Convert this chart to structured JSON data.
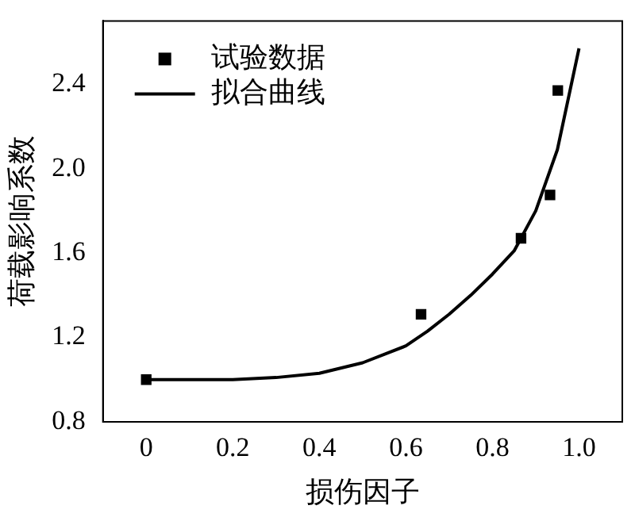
{
  "chart_data": {
    "type": "scatter",
    "xlabel": "损伤因子",
    "ylabel": "荷载影响系数",
    "xlim": [
      -0.1,
      1.1
    ],
    "xticks": [
      {
        "value": 0,
        "label": "0"
      },
      0.2,
      0.4,
      0.6,
      0.8,
      {
        "value": 1,
        "label": "1.0"
      }
    ],
    "ylim": [
      0.8,
      2.7
    ],
    "yticks": [
      0.8,
      1.2,
      1.6,
      {
        "value": 2,
        "label": "2.0"
      },
      2.4
    ],
    "grid": false,
    "legend": "top left",
    "series": [
      {
        "name": "试验数据",
        "type": "scatter",
        "marker": "square",
        "color": "#000000",
        "x": [
          0,
          0.635,
          0.866,
          0.933,
          0.951
        ],
        "values": [
          1.0,
          1.31,
          1.67,
          1.875,
          2.37
        ]
      },
      {
        "name": "拟合曲线",
        "type": "line",
        "marker": "none",
        "line_style": "solid",
        "color": "#000000",
        "x": [
          0,
          0.2,
          0.3,
          0.4,
          0.5,
          0.6,
          0.65,
          0.7,
          0.75,
          0.8,
          0.85,
          0.9,
          0.95,
          1.0
        ],
        "values": [
          1.0,
          1.0,
          1.01,
          1.03,
          1.08,
          1.16,
          1.23,
          1.31,
          1.4,
          1.5,
          1.61,
          1.8,
          2.09,
          2.57
        ]
      }
    ]
  }
}
